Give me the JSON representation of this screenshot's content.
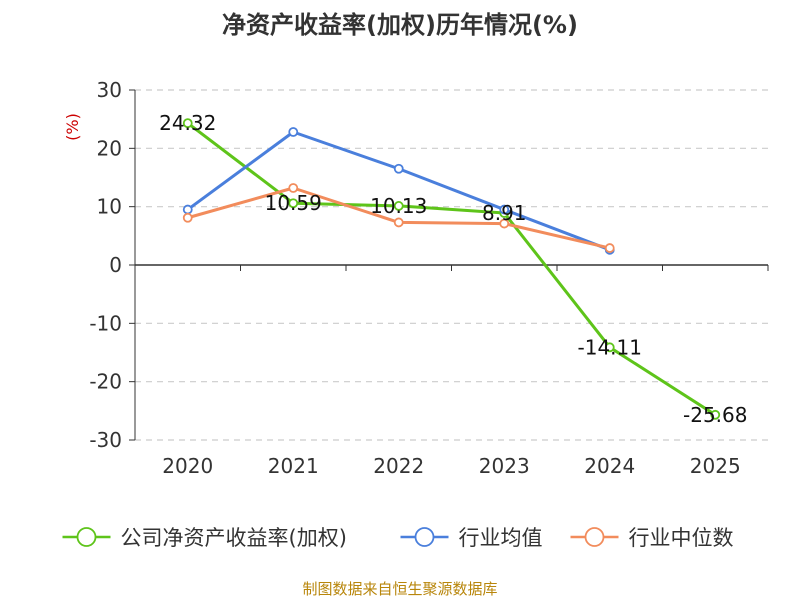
{
  "chart_data": {
    "type": "line",
    "title": "净资产收益率(加权)历年情况(%)",
    "ylabel": "(%)",
    "xlabel": "",
    "categories": [
      "2020",
      "2021",
      "2022",
      "2023",
      "2024",
      "2025"
    ],
    "ylim": [
      -30,
      30
    ],
    "yticks": [
      30,
      20,
      10,
      0,
      -10,
      -20,
      -30
    ],
    "grid": true,
    "legend_position": "bottom",
    "series": [
      {
        "name": "公司净资产收益率(加权)",
        "color": "#5ec41a",
        "values": [
          24.32,
          10.59,
          10.13,
          8.91,
          -14.11,
          -25.68
        ],
        "labels": [
          "24.32",
          "10.59",
          "10.13",
          "8.91",
          "-14.11",
          "-25.68"
        ]
      },
      {
        "name": "行业均值",
        "color": "#4a7fdc",
        "values": [
          9.5,
          22.8,
          16.5,
          9.5,
          2.6,
          null
        ]
      },
      {
        "name": "行业中位数",
        "color": "#f28c5c",
        "values": [
          8.1,
          13.2,
          7.3,
          7.1,
          2.9,
          null
        ]
      }
    ]
  },
  "footer": "制图数据来自恒生聚源数据库"
}
